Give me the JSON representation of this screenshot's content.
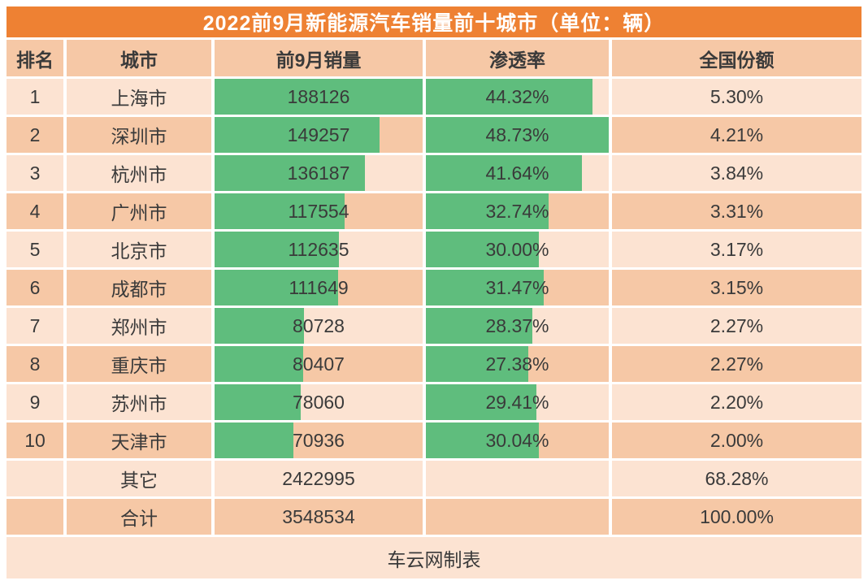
{
  "title": "2022前9月新能源汽车销量前十城市（单位：辆）",
  "footer": "车云网制表",
  "columns": {
    "rank": "排名",
    "city": "城市",
    "sales": "前9月销量",
    "penetration": "渗透率",
    "share": "全国份额"
  },
  "rows": [
    {
      "rank": "1",
      "city": "上海市",
      "sales": "188126",
      "penetration": "44.32%",
      "share": "5.30%",
      "sales_bar": 100,
      "pen_bar": 90.95
    },
    {
      "rank": "2",
      "city": "深圳市",
      "sales": "149257",
      "penetration": "48.73%",
      "share": "4.21%",
      "sales_bar": 79.34,
      "pen_bar": 100
    },
    {
      "rank": "3",
      "city": "杭州市",
      "sales": "136187",
      "penetration": "41.64%",
      "share": "3.84%",
      "sales_bar": 72.39,
      "pen_bar": 85.45
    },
    {
      "rank": "4",
      "city": "广州市",
      "sales": "117554",
      "penetration": "32.74%",
      "share": "3.31%",
      "sales_bar": 62.49,
      "pen_bar": 67.18
    },
    {
      "rank": "5",
      "city": "北京市",
      "sales": "112635",
      "penetration": "30.00%",
      "share": "3.17%",
      "sales_bar": 59.87,
      "pen_bar": 61.56
    },
    {
      "rank": "6",
      "city": "成都市",
      "sales": "111649",
      "penetration": "31.47%",
      "share": "3.15%",
      "sales_bar": 59.35,
      "pen_bar": 64.58
    },
    {
      "rank": "7",
      "city": "郑州市",
      "sales": "80728",
      "penetration": "28.37%",
      "share": "2.27%",
      "sales_bar": 42.91,
      "pen_bar": 58.22
    },
    {
      "rank": "8",
      "city": "重庆市",
      "sales": "80407",
      "penetration": "27.38%",
      "share": "2.27%",
      "sales_bar": 42.74,
      "pen_bar": 56.18
    },
    {
      "rank": "9",
      "city": "苏州市",
      "sales": "78060",
      "penetration": "29.41%",
      "share": "2.20%",
      "sales_bar": 41.49,
      "pen_bar": 60.35
    },
    {
      "rank": "10",
      "city": "天津市",
      "sales": "70936",
      "penetration": "30.04%",
      "share": "2.00%",
      "sales_bar": 37.71,
      "pen_bar": 61.65
    },
    {
      "rank": "",
      "city": "其它",
      "sales": "2422995",
      "penetration": "",
      "share": "68.28%"
    },
    {
      "rank": "",
      "city": "合计",
      "sales": "3548534",
      "penetration": "",
      "share": "100.00%"
    }
  ],
  "colors": {
    "title_bg": "#EE8133",
    "title_text": "#FFFFFF",
    "row_light": "#FCE3D2",
    "row_dark": "#F6C8A6",
    "bar_green": "#5FBD7D",
    "text": "#3A3A3A"
  },
  "chart_data": {
    "type": "table",
    "title": "2022前9月新能源汽车销量前十城市（单位：辆）",
    "columns": [
      "排名",
      "城市",
      "前9月销量",
      "渗透率",
      "全国份额"
    ],
    "rows": [
      [
        "1",
        "上海市",
        188126,
        "44.32%",
        "5.30%"
      ],
      [
        "2",
        "深圳市",
        149257,
        "48.73%",
        "4.21%"
      ],
      [
        "3",
        "杭州市",
        136187,
        "41.64%",
        "3.84%"
      ],
      [
        "4",
        "广州市",
        117554,
        "32.74%",
        "3.31%"
      ],
      [
        "5",
        "北京市",
        112635,
        "30.00%",
        "3.17%"
      ],
      [
        "6",
        "成都市",
        111649,
        "31.47%",
        "3.15%"
      ],
      [
        "7",
        "郑州市",
        80728,
        "28.37%",
        "2.27%"
      ],
      [
        "8",
        "重庆市",
        80407,
        "27.38%",
        "2.27%"
      ],
      [
        "9",
        "苏州市",
        78060,
        "29.41%",
        "2.20%"
      ],
      [
        "10",
        "天津市",
        70936,
        "30.04%",
        "2.00%"
      ],
      [
        "",
        "其它",
        2422995,
        "",
        "68.28%"
      ],
      [
        "",
        "合计",
        3548534,
        "",
        "100.00%"
      ]
    ],
    "data_bars": {
      "前9月销量": {
        "max": 188126,
        "color": "#5FBD7D"
      },
      "渗透率": {
        "max": 48.73,
        "color": "#5FBD7D"
      }
    },
    "footer_note": "车云网制表",
    "legend_position": "none",
    "grid": false
  }
}
